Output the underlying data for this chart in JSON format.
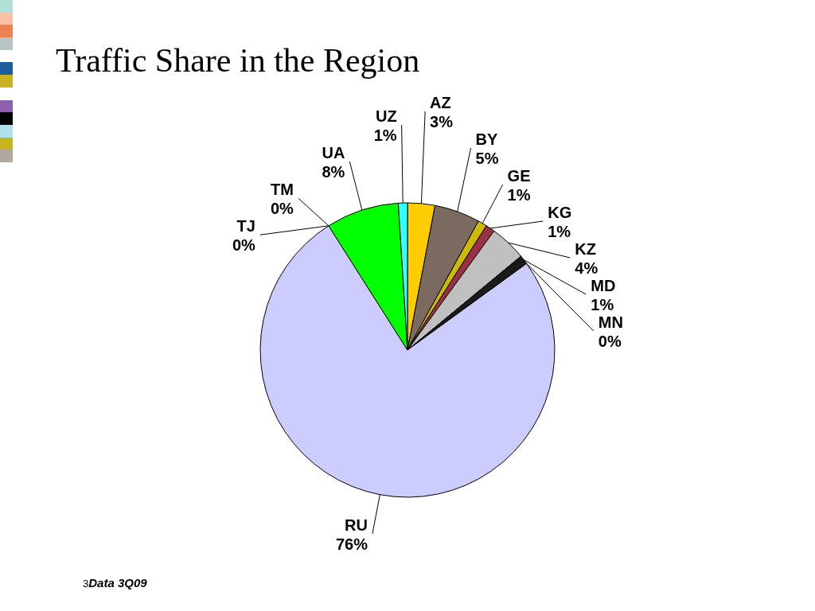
{
  "chart_data": {
    "type": "pie",
    "title": "Traffic Share in the Region",
    "categories": [
      "AZ",
      "BY",
      "GE",
      "KG",
      "KZ",
      "MD",
      "MN",
      "RU",
      "TM",
      "TJ",
      "UA",
      "UZ"
    ],
    "values": [
      3,
      5,
      1,
      1,
      4,
      1,
      0,
      76,
      0,
      0,
      8,
      1
    ],
    "value_labels": [
      "3%",
      "5%",
      "1%",
      "1%",
      "4%",
      "1%",
      "0%",
      "76%",
      "0%",
      "0%",
      "8%",
      "1%"
    ],
    "colors": [
      "#ffcc00",
      "#7a6a60",
      "#ccbb00",
      "#993344",
      "#c0c0c0",
      "#1a1a1a",
      "#003366",
      "#ccccff",
      "#8b0000",
      "#e6d800",
      "#00ff00",
      "#33ffff"
    ],
    "annotations": [
      "3",
      "Data 3Q09"
    ]
  }
}
